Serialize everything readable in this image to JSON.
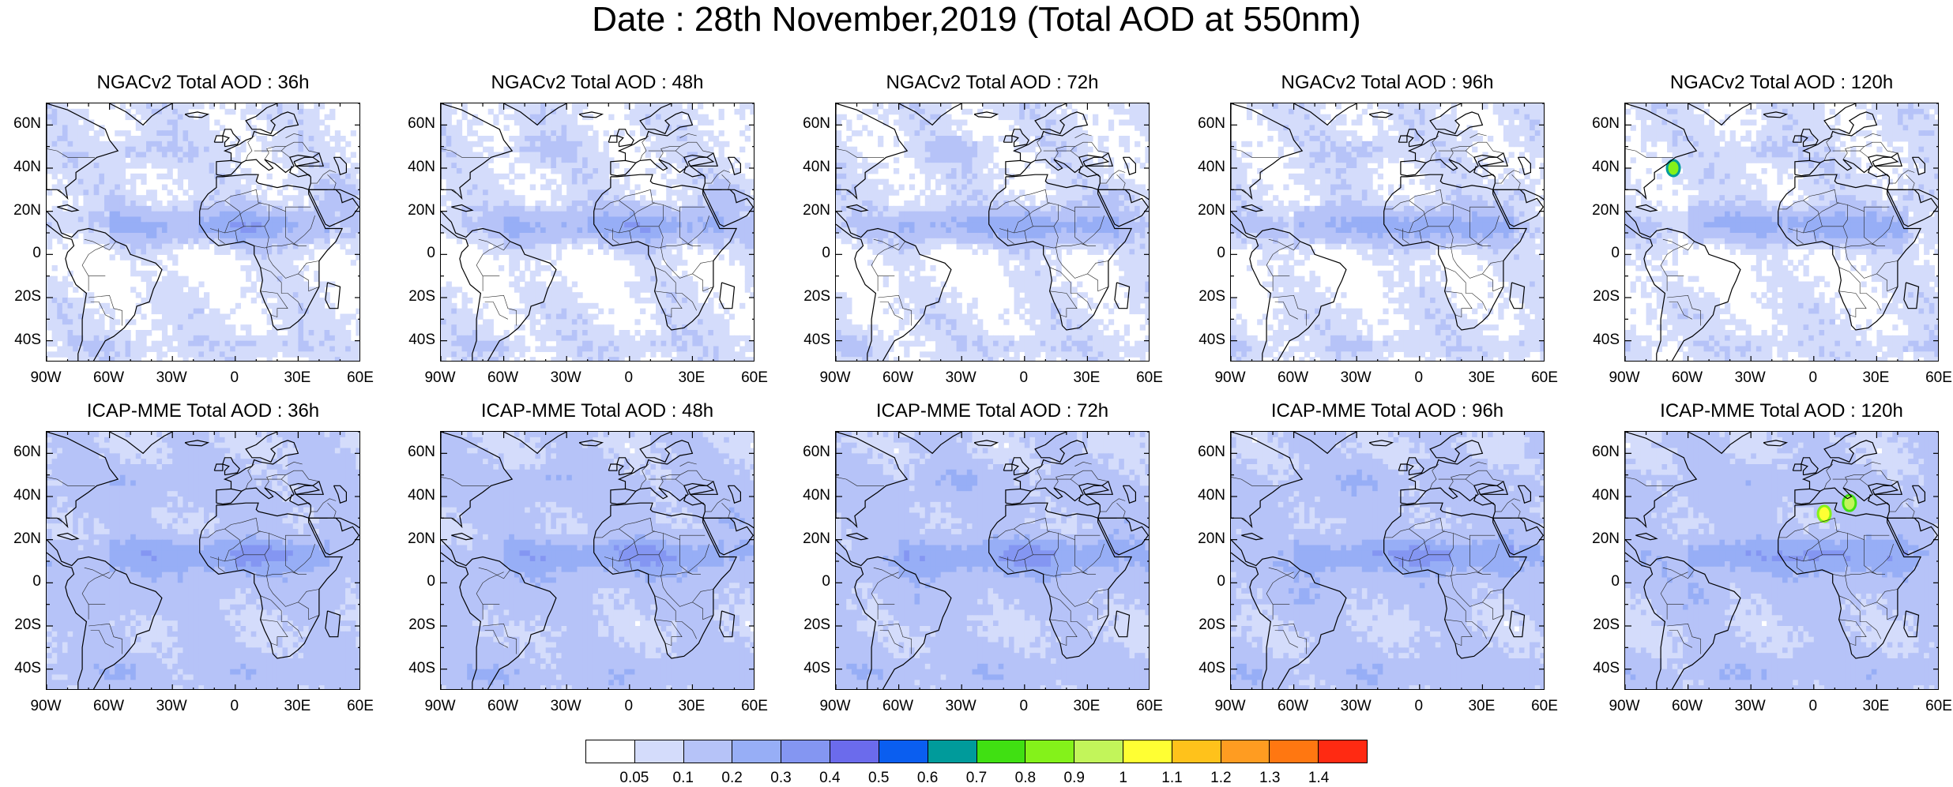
{
  "figure": {
    "title": "Date : 28th November,2019 (Total AOD at 550nm)"
  },
  "panels": [
    {
      "title": "NGACv2 Total AOD : 36h",
      "model": "NGACv2",
      "lead": "36h",
      "hotspots": []
    },
    {
      "title": "NGACv2 Total AOD : 48h",
      "model": "NGACv2",
      "lead": "48h",
      "hotspots": []
    },
    {
      "title": "NGACv2 Total AOD : 72h",
      "model": "NGACv2",
      "lead": "72h",
      "hotspots": []
    },
    {
      "title": "NGACv2 Total AOD : 96h",
      "model": "NGACv2",
      "lead": "96h",
      "hotspots": []
    },
    {
      "title": "NGACv2 Total AOD : 120h",
      "model": "NGACv2",
      "lead": "120h",
      "hotspots": [
        {
          "lon": -67,
          "lat": 40,
          "aod": 0.85
        }
      ]
    },
    {
      "title": "ICAP-MME Total AOD : 36h",
      "model": "ICAP-MME",
      "lead": "36h",
      "hotspots": []
    },
    {
      "title": "ICAP-MME Total AOD : 48h",
      "model": "ICAP-MME",
      "lead": "48h",
      "hotspots": []
    },
    {
      "title": "ICAP-MME Total AOD : 72h",
      "model": "ICAP-MME",
      "lead": "72h",
      "hotspots": []
    },
    {
      "title": "ICAP-MME Total AOD : 96h",
      "model": "ICAP-MME",
      "lead": "96h",
      "hotspots": []
    },
    {
      "title": "ICAP-MME Total AOD : 120h",
      "model": "ICAP-MME",
      "lead": "120h",
      "hotspots": [
        {
          "lon": 5,
          "lat": 32,
          "aod": 1.05
        },
        {
          "lon": 17,
          "lat": 37,
          "aod": 0.9
        }
      ]
    }
  ],
  "axes": {
    "lat_ticks": [
      "60N",
      "40N",
      "20N",
      "0",
      "20S",
      "40S"
    ],
    "lon_ticks": [
      "90W",
      "60W",
      "30W",
      "0",
      "30E",
      "60E"
    ],
    "lon_range": [
      -90,
      60
    ],
    "lat_range": [
      -50,
      70
    ]
  },
  "colorbar": {
    "levels": [
      "0.05",
      "0.1",
      "0.2",
      "0.3",
      "0.4",
      "0.5",
      "0.6",
      "0.7",
      "0.8",
      "0.9",
      "1",
      "1.1",
      "1.2",
      "1.3",
      "1.4"
    ],
    "colors": [
      "#ffffff",
      "#d4dcfb",
      "#b6c3f8",
      "#97aef6",
      "#8496f2",
      "#6b6bec",
      "#0a5ef0",
      "#009b9b",
      "#40e012",
      "#84f21a",
      "#c2f55a",
      "#ffff33",
      "#ffc21b",
      "#ff9c21",
      "#ff7711",
      "#ff2a12"
    ]
  }
}
